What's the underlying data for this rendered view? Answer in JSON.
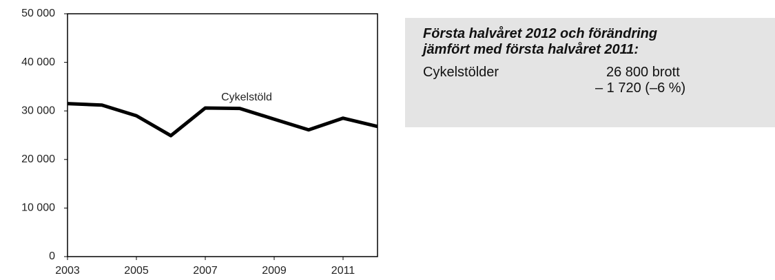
{
  "chart_data": {
    "type": "line",
    "annotation": "Cykelstöld",
    "x": [
      2003,
      2004,
      2005,
      2006,
      2007,
      2008,
      2009,
      2010,
      2011,
      2012
    ],
    "series": [
      {
        "color": "#000000",
        "values": [
          31500,
          31200,
          29000,
          24900,
          30600,
          30500,
          28300,
          26100,
          28500,
          26800
        ]
      }
    ],
    "xlim": [
      2003,
      2012
    ],
    "xticks": [
      2003,
      2005,
      2007,
      2009,
      2011
    ],
    "ylim": [
      0,
      50000
    ],
    "yticks": [
      {
        "value": 0,
        "label": "0"
      },
      {
        "value": 10000,
        "label": "10 000"
      },
      {
        "value": 20000,
        "label": "20 000"
      },
      {
        "value": 30000,
        "label": "30 000"
      },
      {
        "value": 40000,
        "label": "40 000"
      },
      {
        "value": 50000,
        "label": "50 000"
      }
    ],
    "grid": false
  },
  "info_box": {
    "title_lines": [
      "Första halvåret 2012 och förändring",
      "jämfört med första halvåret 2011:"
    ],
    "label": "Cykelstölder",
    "value_lines": [
      "26 800 brott",
      "– 1 720 (–6 %)"
    ]
  }
}
